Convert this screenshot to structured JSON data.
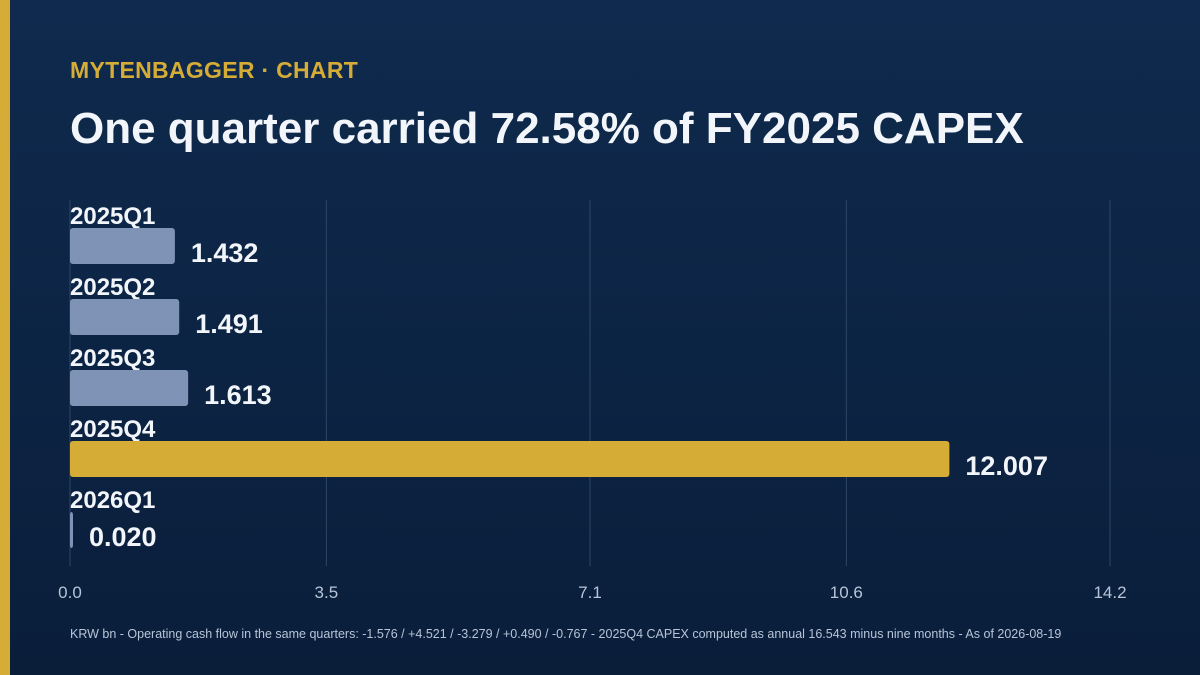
{
  "brand": {
    "label": "MYTENBAGGER · CHART",
    "color": "#d4ac36"
  },
  "title": "One quarter carried 72.58% of FY2025 CAPEX",
  "footnote": "KRW bn - Operating cash flow in the same quarters: -1.576 / +4.521 / -3.279 / +0.490 / -0.767 - 2025Q4 CAPEX computed as annual 16.543 minus nine months - As of 2026-08-19",
  "colors": {
    "background_top": "#0f2a4e",
    "background_bottom": "#0a1e3a",
    "bar_default": "#7e93b6",
    "bar_highlight": "#d4ac36",
    "label_text": "#f2f5fa",
    "tick_text": "#b7c4d8",
    "grid": "#2e4668"
  },
  "chart_data": {
    "type": "bar",
    "orientation": "horizontal",
    "categories": [
      "2025Q1",
      "2025Q2",
      "2025Q3",
      "2025Q4",
      "2026Q1"
    ],
    "values": [
      1.432,
      1.491,
      1.613,
      12.007,
      0.02
    ],
    "value_labels": [
      "1.432",
      "1.491",
      "1.613",
      "12.007",
      "0.020"
    ],
    "highlight": "2025Q4",
    "xlim": [
      0,
      14.2
    ],
    "xticks": [
      0,
      3.5,
      7.1,
      10.6,
      14.2
    ],
    "xtick_labels": [
      "0.0",
      "3.5",
      "7.1",
      "10.6",
      "14.2"
    ],
    "grid": true
  }
}
